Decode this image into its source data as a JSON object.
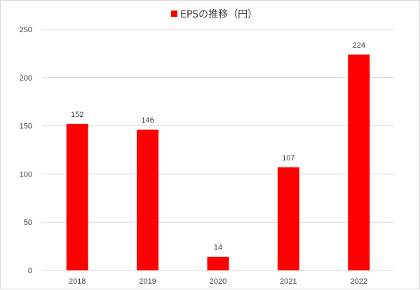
{
  "chart_data": {
    "type": "bar",
    "title": "",
    "categories": [
      "2018",
      "2019",
      "2020",
      "2021",
      "2022"
    ],
    "series": [
      {
        "name": "EPSの推移（円）",
        "values": [
          152,
          146,
          14,
          107,
          224
        ],
        "color": "#ff0000"
      }
    ],
    "ylim": [
      0,
      250
    ],
    "yticks": [
      0,
      50,
      100,
      150,
      200,
      250
    ],
    "grid": true,
    "legend_position": "top",
    "data_labels": true,
    "gridline_color": "#d9d9d9",
    "text_color": "#404040"
  }
}
